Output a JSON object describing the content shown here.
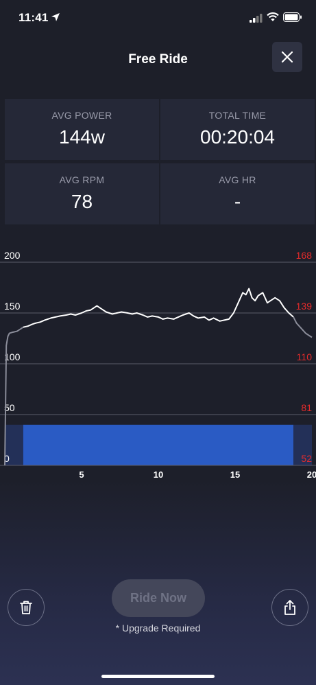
{
  "status_bar": {
    "time": "11:41"
  },
  "header": {
    "title": "Free Ride"
  },
  "stats": [
    {
      "label": "AVG POWER",
      "value": "144w"
    },
    {
      "label": "TOTAL TIME",
      "value": "00:20:04"
    },
    {
      "label": "AVG RPM",
      "value": "78"
    },
    {
      "label": "AVG HR",
      "value": "-"
    }
  ],
  "chart_data": {
    "type": "line",
    "x_ticks": [
      "5",
      "10",
      "15",
      "20"
    ],
    "xlim": [
      0,
      20
    ],
    "y_left_ticks": [
      "200",
      "150",
      "100",
      "50",
      "0"
    ],
    "y_left_range": [
      0,
      200
    ],
    "y_right_ticks": [
      "168",
      "139",
      "110",
      "81",
      "52"
    ],
    "y_right_range": [
      52,
      168
    ],
    "grid": true,
    "series": [
      {
        "x": [
          0.0,
          0.1,
          0.2,
          0.3,
          0.5,
          0.8,
          1.0,
          1.2,
          1.5,
          1.8,
          2.0,
          2.3,
          2.6,
          3.0,
          3.3,
          3.6,
          4.0,
          4.3,
          4.6,
          5.0,
          5.3,
          5.6,
          6.0,
          6.3,
          6.6,
          7.0,
          7.3,
          7.6,
          8.0,
          8.3,
          8.6,
          9.0,
          9.3,
          9.6,
          10.0,
          10.3,
          10.6,
          11.0,
          11.3,
          11.6,
          12.0,
          12.3,
          12.6,
          13.0,
          13.3,
          13.6,
          14.0,
          14.3,
          14.6,
          14.9,
          15.2,
          15.5,
          15.7,
          15.9,
          16.1,
          16.3,
          16.5,
          16.8,
          17.1,
          17.3,
          17.6,
          17.9,
          18.2,
          18.5,
          18.8,
          19.0,
          19.3,
          19.6,
          20.0
        ],
        "y": [
          0,
          118,
          127,
          130,
          131,
          132,
          134,
          136,
          137,
          139,
          140,
          141,
          143,
          145,
          146,
          147,
          148,
          149,
          148,
          150,
          152,
          153,
          157,
          154,
          151,
          149,
          150,
          151,
          150,
          149,
          150,
          148,
          146,
          147,
          146,
          144,
          145,
          144,
          146,
          148,
          150,
          147,
          145,
          146,
          143,
          145,
          142,
          143,
          144,
          150,
          160,
          170,
          168,
          174,
          165,
          162,
          167,
          170,
          160,
          162,
          165,
          162,
          155,
          150,
          146,
          140,
          135,
          130,
          126
        ],
        "color": "#ffffff",
        "segment": [
          1.2,
          18.8
        ]
      },
      {
        "x": [
          0,
          1.2,
          18.8,
          20
        ],
        "y": [
          40,
          40,
          40,
          40
        ],
        "color": "#2a5bc4",
        "segment": [
          1.2,
          18.8
        ]
      }
    ]
  },
  "actions": {
    "ride_now_label": "Ride Now",
    "upgrade_note": "* Upgrade Required"
  },
  "colors": {
    "accent_red": "#e52b2b",
    "bar_blue": "#2a5bc4"
  }
}
